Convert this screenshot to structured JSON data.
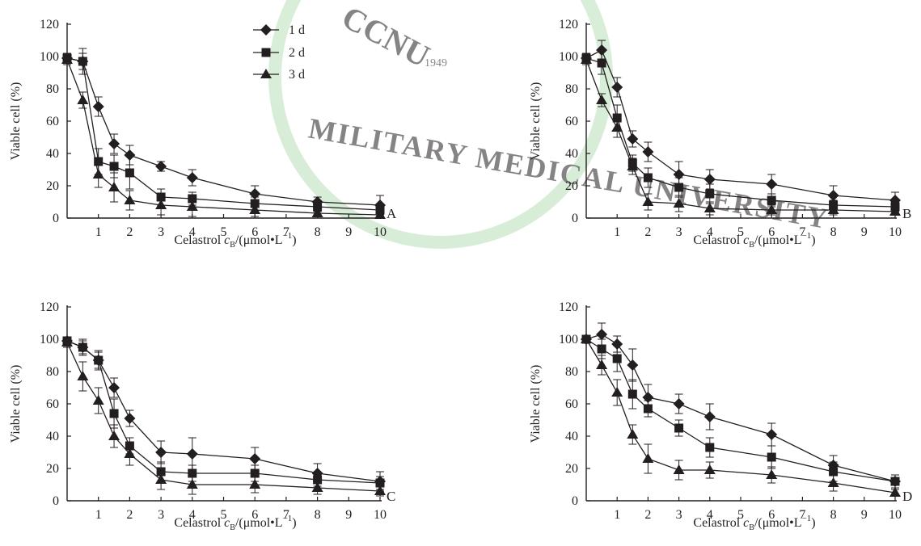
{
  "watermark": {
    "text_top": "CCNU",
    "text_bottom": "MILITARY MEDICAL UNIVERSITY",
    "year": "1949",
    "color": "#b9e0b9"
  },
  "legend": {
    "series_names": [
      "1 d",
      "2 d",
      "3 d"
    ],
    "markers": [
      "diamond",
      "square",
      "triangle"
    ]
  },
  "chart_data": [
    {
      "type": "line",
      "panel_label": "A",
      "ylabel": "Viable cell (%)",
      "xlabel": {
        "pre": "Celastrol ",
        "italic": "c",
        "sub": "B",
        "mid": "/(μmol•L",
        "sup": "−1",
        "post": ")"
      },
      "xlim": [
        0,
        10
      ],
      "ylim": [
        0,
        120
      ],
      "xticks": [
        "1",
        "2",
        "3",
        "4",
        "5",
        "6",
        "7",
        "8",
        "9",
        "10"
      ],
      "yticks": [
        "0",
        "20",
        "40",
        "60",
        "80",
        "100",
        "120"
      ],
      "x": [
        0,
        0.5,
        1,
        1.5,
        2,
        3,
        4,
        6,
        8,
        10
      ],
      "series": [
        {
          "name": "1 d",
          "marker": "diamond",
          "values": [
            99,
            97,
            69,
            46,
            39,
            32,
            25,
            15,
            10,
            8
          ],
          "errors": [
            3,
            8,
            6,
            6,
            6,
            3,
            5,
            5,
            3,
            6
          ]
        },
        {
          "name": "2 d",
          "marker": "square",
          "values": [
            99,
            97,
            35,
            32,
            28,
            13,
            12,
            9,
            7,
            5
          ],
          "errors": [
            3,
            5,
            8,
            7,
            10,
            5,
            4,
            4,
            3,
            3
          ]
        },
        {
          "name": "3 d",
          "marker": "triangle",
          "values": [
            98,
            73,
            27,
            19,
            11,
            8,
            7,
            5,
            3,
            2
          ],
          "errors": [
            3,
            5,
            8,
            9,
            6,
            6,
            6,
            4,
            3,
            2
          ]
        }
      ]
    },
    {
      "type": "line",
      "panel_label": "B",
      "ylabel": "Viable cell (%)",
      "xlabel": {
        "pre": "Celastrol ",
        "italic": "c",
        "sub": "B",
        "mid": "/(μmol•L",
        "sup": "−1",
        "post": ")"
      },
      "xlim": [
        0,
        10
      ],
      "ylim": [
        0,
        120
      ],
      "xticks": [
        "1",
        "2",
        "3",
        "4",
        "5",
        "6",
        "7",
        "8",
        "9",
        "10"
      ],
      "yticks": [
        "0",
        "20",
        "40",
        "60",
        "80",
        "100",
        "120"
      ],
      "x": [
        0,
        0.5,
        1,
        1.5,
        2,
        3,
        4,
        6,
        8,
        10
      ],
      "series": [
        {
          "name": "1 d",
          "marker": "diamond",
          "values": [
            99,
            104,
            81,
            49,
            41,
            27,
            24,
            21,
            14,
            11
          ],
          "errors": [
            3,
            6,
            6,
            5,
            6,
            8,
            6,
            6,
            6,
            5
          ]
        },
        {
          "name": "2 d",
          "marker": "square",
          "values": [
            99,
            96,
            62,
            34,
            25,
            19,
            15,
            11,
            8,
            7
          ],
          "errors": [
            3,
            7,
            8,
            5,
            6,
            6,
            6,
            4,
            3,
            3
          ]
        },
        {
          "name": "3 d",
          "marker": "triangle",
          "values": [
            98,
            73,
            56,
            32,
            10,
            9,
            6,
            5,
            5,
            4
          ],
          "errors": [
            3,
            4,
            6,
            5,
            5,
            5,
            4,
            3,
            3,
            2
          ]
        }
      ]
    },
    {
      "type": "line",
      "panel_label": "C",
      "ylabel": "Viable cell (%)",
      "xlabel": {
        "pre": "Celastrol ",
        "italic": "c",
        "sub": "B",
        "mid": "/(μmol•L",
        "sup": "−1",
        "post": ")"
      },
      "xlim": [
        0,
        10
      ],
      "ylim": [
        0,
        120
      ],
      "xticks": [
        "1",
        "2",
        "3",
        "4",
        "5",
        "6",
        "7",
        "8",
        "9",
        "10"
      ],
      "yticks": [
        "0",
        "20",
        "40",
        "60",
        "80",
        "100",
        "120"
      ],
      "x": [
        0,
        0.5,
        1,
        1.5,
        2,
        3,
        4,
        6,
        8,
        10
      ],
      "series": [
        {
          "name": "1 d",
          "marker": "diamond",
          "values": [
            99,
            95,
            87,
            70,
            51,
            30,
            29,
            26,
            17,
            12
          ],
          "errors": [
            2,
            5,
            6,
            6,
            5,
            7,
            10,
            7,
            6,
            6
          ]
        },
        {
          "name": "2 d",
          "marker": "square",
          "values": [
            99,
            95,
            87,
            54,
            34,
            18,
            17,
            17,
            13,
            11
          ],
          "errors": [
            2,
            4,
            5,
            9,
            5,
            6,
            5,
            5,
            4,
            4
          ]
        },
        {
          "name": "3 d",
          "marker": "triangle",
          "values": [
            98,
            77,
            62,
            40,
            29,
            13,
            10,
            10,
            8,
            6
          ],
          "errors": [
            3,
            9,
            8,
            7,
            7,
            6,
            6,
            5,
            4,
            3
          ]
        }
      ]
    },
    {
      "type": "line",
      "panel_label": "D",
      "ylabel": "Viable cell (%)",
      "xlabel": {
        "pre": "Celastrol ",
        "italic": "c",
        "sub": "B",
        "mid": "/(μmol•L",
        "sup": "−1",
        "post": ")"
      },
      "xlim": [
        0,
        10
      ],
      "ylim": [
        0,
        120
      ],
      "xticks": [
        "1",
        "2",
        "3",
        "4",
        "5",
        "6",
        "7",
        "8",
        "9",
        "10"
      ],
      "yticks": [
        "0",
        "20",
        "40",
        "60",
        "80",
        "100",
        "120"
      ],
      "x": [
        0,
        0.5,
        1,
        1.5,
        2,
        3,
        4,
        6,
        8,
        10
      ],
      "series": [
        {
          "name": "1 d",
          "marker": "diamond",
          "values": [
            100,
            103,
            97,
            84,
            64,
            60,
            52,
            41,
            22,
            12
          ],
          "errors": [
            2,
            7,
            5,
            10,
            8,
            6,
            8,
            7,
            6,
            4
          ]
        },
        {
          "name": "2 d",
          "marker": "square",
          "values": [
            100,
            94,
            88,
            66,
            57,
            45,
            33,
            27,
            18,
            12
          ],
          "errors": [
            2,
            6,
            8,
            9,
            5,
            5,
            6,
            7,
            6,
            4
          ]
        },
        {
          "name": "3 d",
          "marker": "triangle",
          "values": [
            100,
            84,
            67,
            41,
            26,
            19,
            19,
            16,
            11,
            5
          ],
          "errors": [
            2,
            6,
            8,
            6,
            9,
            6,
            5,
            5,
            5,
            2
          ]
        }
      ]
    }
  ]
}
